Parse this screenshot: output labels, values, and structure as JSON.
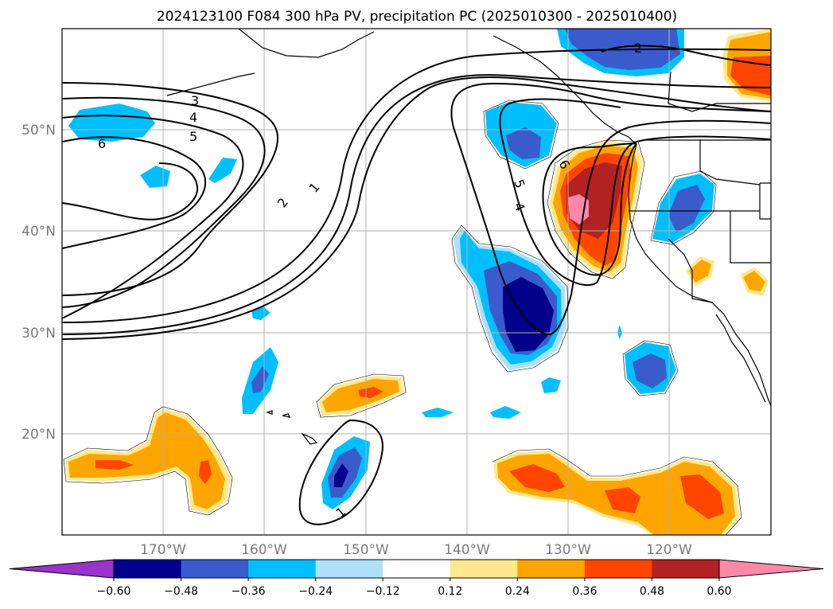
{
  "title": "2024123100 F084 300 hPa PV, precipitation PC (2025010300 - 2025010400)",
  "lat_labels": [
    "50°N",
    "40°N",
    "30°N",
    "20°N"
  ],
  "lon_labels": [
    "170°W",
    "160°W",
    "150°W",
    "140°W",
    "130°W",
    "120°W"
  ],
  "colorbar": {
    "ticks": [
      "−0.60",
      "−0.48",
      "−0.36",
      "−0.24",
      "−0.12",
      "0.12",
      "0.24",
      "0.36",
      "0.48",
      "0.60"
    ],
    "colors": [
      "#9933cc",
      "#00008b",
      "#3a5bcc",
      "#00bfff",
      "#aee0fa",
      "#ffffff",
      "#ffe98c",
      "#ffa500",
      "#ff4500",
      "#b22222",
      "#ff88aa"
    ]
  },
  "contour_labels": [
    "1",
    "2",
    "3",
    "4",
    "5",
    "6",
    "6",
    "5",
    "4",
    "2",
    "1"
  ],
  "map": {
    "lon_range": [
      -180,
      -110
    ],
    "lat_range": [
      10,
      60
    ],
    "gridlines": true
  }
}
